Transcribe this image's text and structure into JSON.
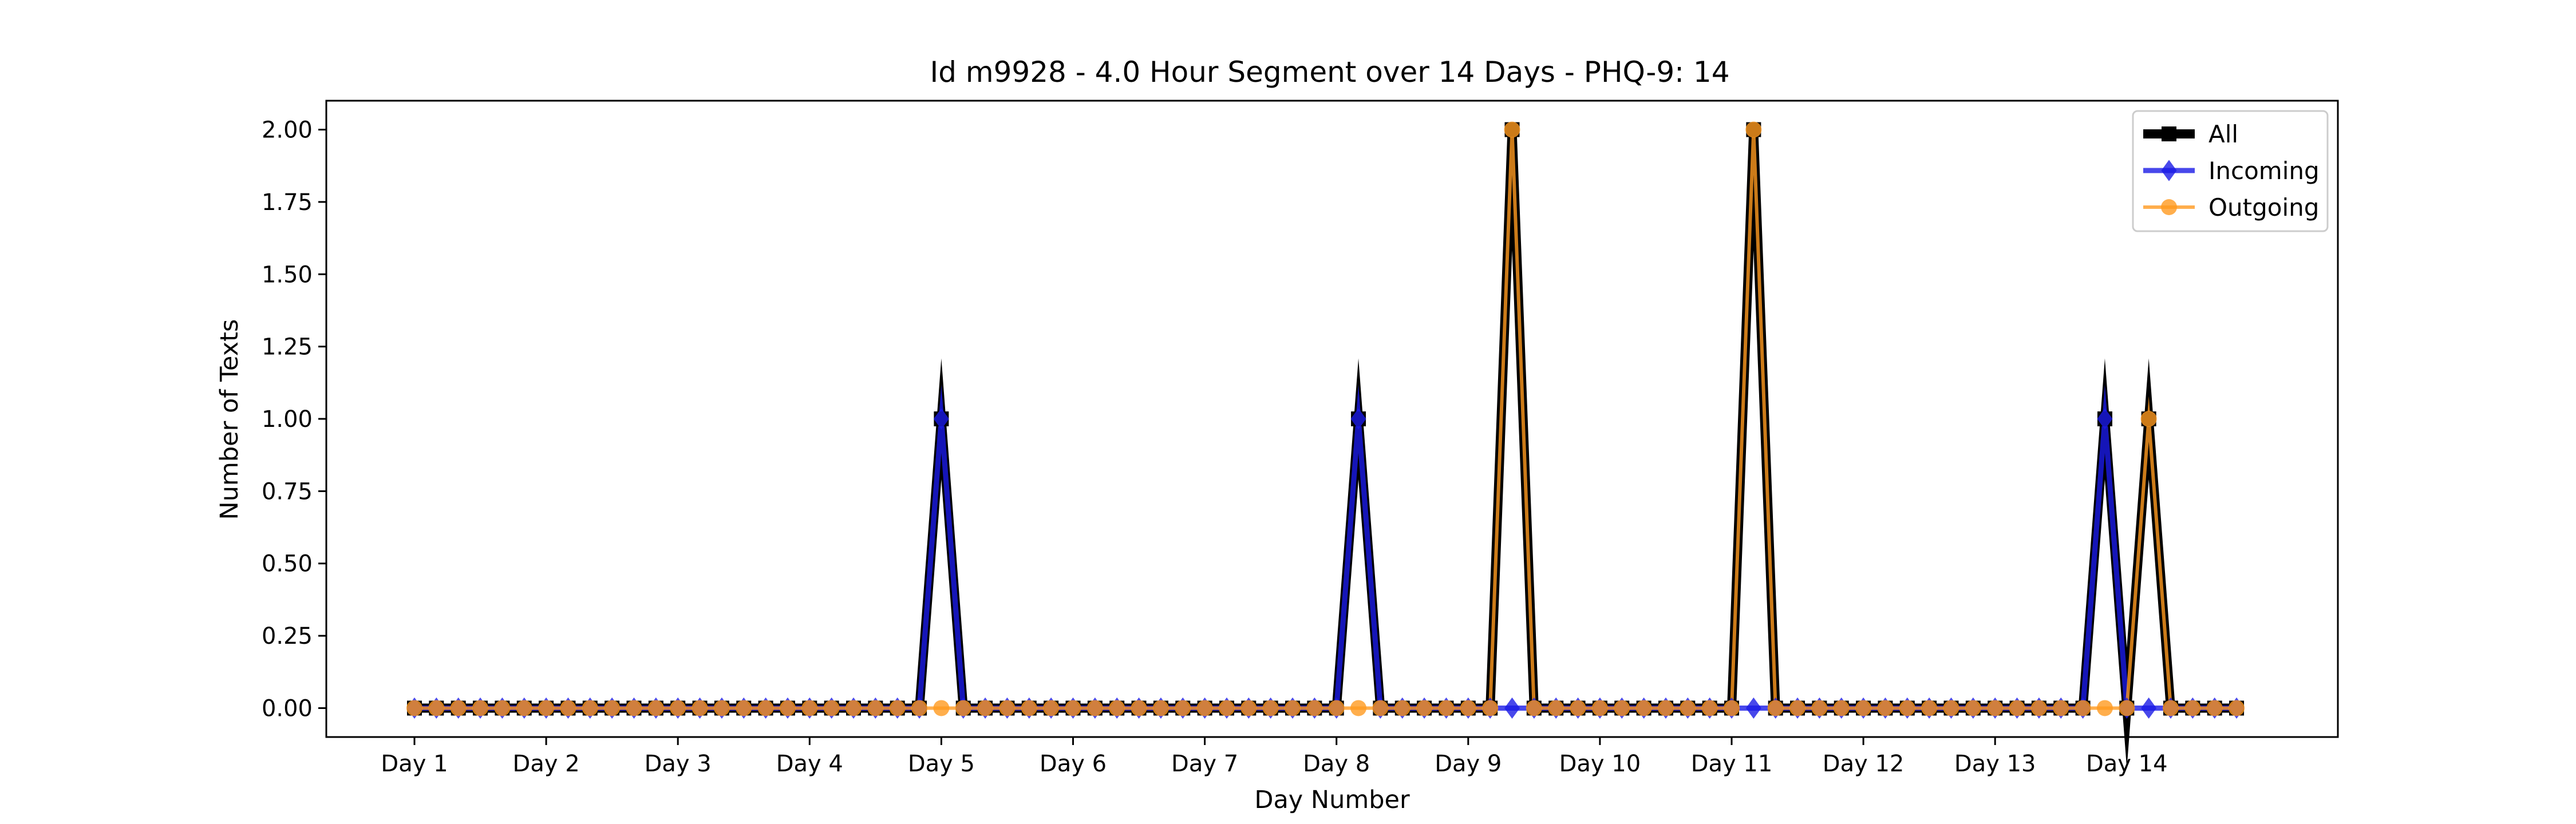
{
  "chart_data": {
    "type": "line",
    "title": "Id m9928 - 4.0 Hour Segment over 14 Days - PHQ-9: 14",
    "xlabel": "Day Number",
    "ylabel": "Number of Texts",
    "xticks": [
      "Day 1",
      "Day 2",
      "Day 3",
      "Day 4",
      "Day 5",
      "Day 6",
      "Day 7",
      "Day 8",
      "Day 9",
      "Day 10",
      "Day 11",
      "Day 12",
      "Day 13",
      "Day 14"
    ],
    "xtick_index": [
      0,
      6,
      12,
      18,
      24,
      30,
      36,
      42,
      48,
      54,
      60,
      66,
      72,
      78
    ],
    "ylim": [
      -0.1,
      2.1
    ],
    "yticks": [
      "0.00",
      "0.25",
      "0.50",
      "0.75",
      "1.00",
      "1.25",
      "1.50",
      "1.75",
      "2.00"
    ],
    "grid": false,
    "legend_position": "top-right",
    "series": [
      {
        "name": "All",
        "color": "#000000",
        "marker": "square",
        "values": [
          0,
          0,
          0,
          0,
          0,
          0,
          0,
          0,
          0,
          0,
          0,
          0,
          0,
          0,
          0,
          0,
          0,
          0,
          0,
          0,
          0,
          0,
          0,
          0,
          1,
          0,
          0,
          0,
          0,
          0,
          0,
          0,
          0,
          0,
          0,
          0,
          0,
          0,
          0,
          0,
          0,
          0,
          0,
          1,
          0,
          0,
          0,
          0,
          0,
          0,
          2,
          0,
          0,
          0,
          0,
          0,
          0,
          0,
          0,
          0,
          0,
          2,
          0,
          0,
          0,
          0,
          0,
          0,
          0,
          0,
          0,
          0,
          0,
          0,
          0,
          0,
          0,
          1,
          0,
          1,
          0,
          0,
          0,
          0
        ]
      },
      {
        "name": "Incoming",
        "color": "#1a1ae6",
        "marker": "diamond",
        "values": [
          0,
          0,
          0,
          0,
          0,
          0,
          0,
          0,
          0,
          0,
          0,
          0,
          0,
          0,
          0,
          0,
          0,
          0,
          0,
          0,
          0,
          0,
          0,
          0,
          1,
          0,
          0,
          0,
          0,
          0,
          0,
          0,
          0,
          0,
          0,
          0,
          0,
          0,
          0,
          0,
          0,
          0,
          0,
          1,
          0,
          0,
          0,
          0,
          0,
          0,
          0,
          0,
          0,
          0,
          0,
          0,
          0,
          0,
          0,
          0,
          0,
          0,
          0,
          0,
          0,
          0,
          0,
          0,
          0,
          0,
          0,
          0,
          0,
          0,
          0,
          0,
          0,
          1,
          0,
          0,
          0,
          0,
          0,
          0
        ]
      },
      {
        "name": "Outgoing",
        "color": "#ff9a1f",
        "marker": "circle",
        "values": [
          0,
          0,
          0,
          0,
          0,
          0,
          0,
          0,
          0,
          0,
          0,
          0,
          0,
          0,
          0,
          0,
          0,
          0,
          0,
          0,
          0,
          0,
          0,
          0,
          0,
          0,
          0,
          0,
          0,
          0,
          0,
          0,
          0,
          0,
          0,
          0,
          0,
          0,
          0,
          0,
          0,
          0,
          0,
          0,
          0,
          0,
          0,
          0,
          0,
          0,
          2,
          0,
          0,
          0,
          0,
          0,
          0,
          0,
          0,
          0,
          0,
          2,
          0,
          0,
          0,
          0,
          0,
          0,
          0,
          0,
          0,
          0,
          0,
          0,
          0,
          0,
          0,
          0,
          0,
          1,
          0,
          0,
          0,
          0
        ]
      }
    ]
  }
}
